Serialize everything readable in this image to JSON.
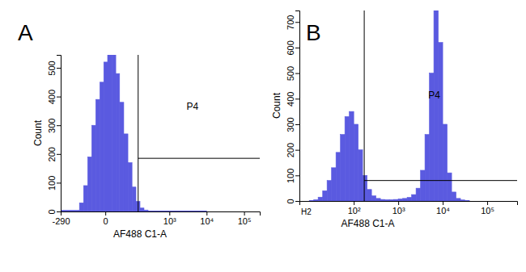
{
  "chart_data": [
    {
      "type": "histogram",
      "panel_label": "A",
      "xlabel": "AF488 C1-A",
      "ylabel": "Count",
      "color": "#5a5ae0",
      "log": "x",
      "bins": [
        -290,
        -78,
        -56,
        -39,
        -26,
        -16,
        -8,
        -2,
        3,
        10,
        18,
        28,
        42,
        60,
        83,
        111,
        148,
        195,
        256,
        10000
      ],
      "counts": [
        4,
        30,
        90,
        190,
        300,
        390,
        450,
        520,
        570,
        560,
        480,
        380,
        270,
        170,
        85,
        35,
        12,
        5,
        2
      ],
      "xlim": [
        -290,
        262144
      ],
      "ylim": [
        0,
        545
      ],
      "xticks": [
        -290,
        0,
        {
          "value": 1000,
          "label": "10³"
        },
        {
          "value": 10000,
          "label": "10⁴"
        },
        {
          "value": 100000,
          "label": "10⁵"
        }
      ],
      "yticks": [
        0,
        100,
        200,
        300,
        400,
        500
      ],
      "gates": [
        {
          "label": "P4",
          "x": [
            130,
            262144
          ],
          "y": 185
        }
      ]
    },
    {
      "type": "histogram",
      "panel_label": "B",
      "xlabel": "AF488 C1-A",
      "ylabel": "Count",
      "color": "#5a5ae0",
      "log": "x",
      "annotation": "H2",
      "bins": [
        10,
        12.6,
        15.8,
        20,
        25.1,
        31.6,
        39.8,
        50.1,
        63.1,
        79.4,
        100,
        126,
        158,
        200,
        251,
        316,
        398,
        501,
        631,
        794,
        1000,
        1259,
        1585,
        1995,
        2512,
        3162,
        3981,
        5012,
        6310,
        7943,
        10000,
        12589,
        15849,
        19953,
        25119,
        31623,
        39811
      ],
      "counts": [
        2,
        5,
        15,
        40,
        80,
        130,
        190,
        260,
        330,
        350,
        300,
        200,
        100,
        45,
        20,
        10,
        6,
        5,
        5,
        6,
        8,
        10,
        14,
        25,
        50,
        120,
        260,
        500,
        760,
        620,
        300,
        110,
        35,
        10,
        4,
        2
      ],
      "xlim": [
        6,
        470000
      ],
      "ylim": [
        0,
        745
      ],
      "xticks": [
        {
          "value": 100,
          "label": "10²"
        },
        {
          "value": 1000,
          "label": "10³"
        },
        {
          "value": 10000,
          "label": "10⁴"
        },
        {
          "value": 100000,
          "label": "10⁵"
        }
      ],
      "yticks": [
        0,
        100,
        200,
        300,
        400,
        500,
        600,
        700
      ],
      "gates": [
        {
          "label": "P4",
          "x": [
            172,
            470000
          ],
          "y": 80
        }
      ]
    }
  ]
}
